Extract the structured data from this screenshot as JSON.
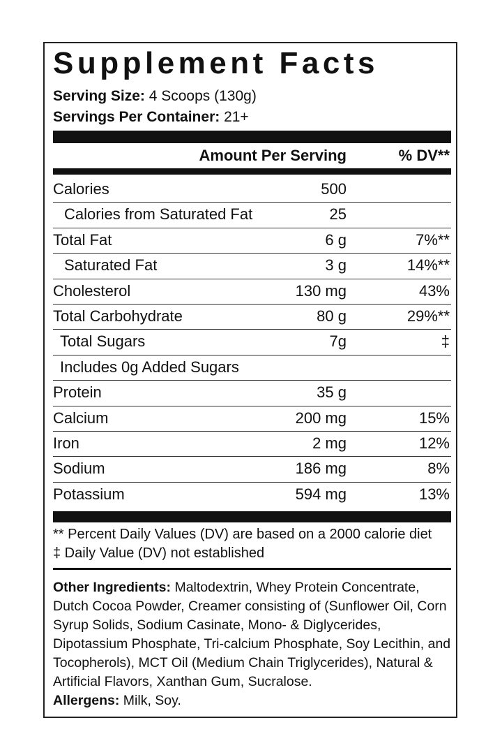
{
  "header": {
    "title": "Supplement Facts",
    "serving_size_label": "Serving Size:",
    "serving_size": "4 Scoops (130g)",
    "servings_label": "Servings Per Container:",
    "servings": "21+"
  },
  "table": {
    "columns": [
      "Amount Per Serving",
      "% DV**"
    ],
    "rows": [
      {
        "name": "Calories",
        "amount": "500"
      },
      {
        "name": "Calories from Saturated Fat",
        "amount": "25"
      },
      {
        "name": "Total Fat",
        "amount": "6 g",
        "dv": "7%**"
      },
      {
        "name": "Saturated Fat",
        "amount": "3 g",
        "dv": "14%**"
      },
      {
        "name": "Cholesterol",
        "amount": "130 mg",
        "dv": "43%"
      },
      {
        "name": "Total Carbohydrate",
        "amount": "80 g",
        "dv": "29%**"
      },
      {
        "name": "Total Sugars",
        "amount": "7g",
        "dv": "‡"
      },
      {
        "name": "Includes 0g Added Sugars"
      },
      {
        "name": "Protein",
        "amount": "35 g"
      },
      {
        "name": "Calcium",
        "amount": "200 mg",
        "dv": "15%"
      },
      {
        "name": "Iron",
        "amount": "2 mg",
        "dv": "12%"
      },
      {
        "name": "Sodium",
        "amount": "186 mg",
        "dv": "8%"
      },
      {
        "name": "Potassium",
        "amount": "594 mg",
        "dv": "13%"
      }
    ]
  },
  "footnotes": [
    "** Percent Daily Values (DV) are based on a 2000 calorie diet",
    "‡ Daily Value (DV) not established"
  ],
  "ingredients": {
    "label": "Other Ingredients:",
    "text": "Maltodextrin, Whey Protein Concentrate, Dutch Cocoa Powder, Creamer consisting of (Sunflower Oil, Corn Syrup Solids, Sodium Casinate, Mono- & Diglycerides, Dipotassium Phosphate, Tri-calcium Phosphate, Soy Lecithin, and Tocopherols), MCT Oil (Medium Chain Triglycerides), Natural & Artificial Flavors, Xanthan Gum, Sucralose."
  },
  "allergens": {
    "label": "Allergens:",
    "text": "Milk, Soy."
  }
}
